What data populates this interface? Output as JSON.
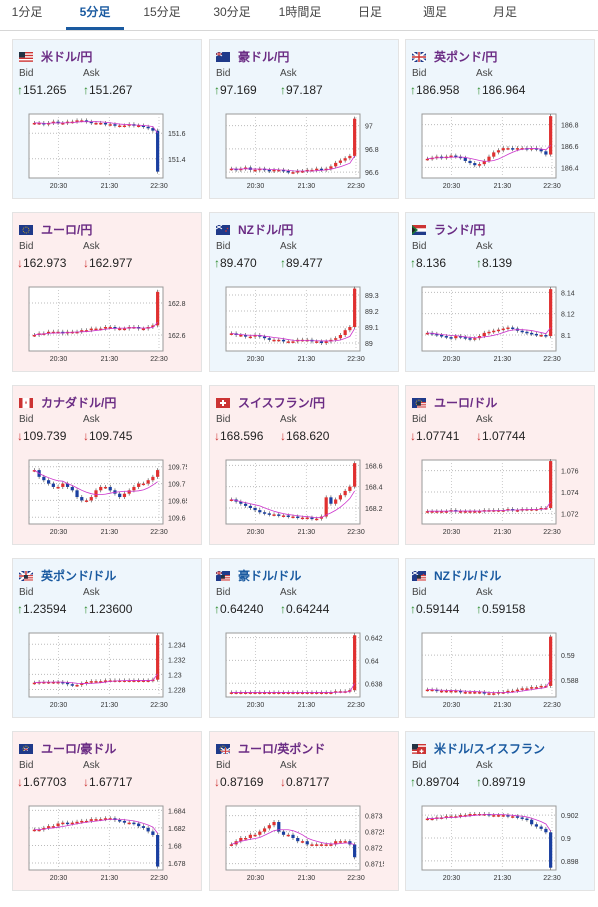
{
  "tabs": [
    {
      "label": "1分足",
      "active": false
    },
    {
      "label": "5分足",
      "active": true
    },
    {
      "label": "15分足",
      "active": false
    },
    {
      "label": "30分足",
      "active": false
    },
    {
      "label": "1時間足",
      "active": false
    },
    {
      "label": "日足",
      "active": false
    },
    {
      "label": "週足",
      "active": false
    },
    {
      "label": "月足",
      "active": false
    }
  ],
  "labels": {
    "bid": "Bid",
    "ask": "Ask"
  },
  "arrows": {
    "up": "↑",
    "down": "↓"
  },
  "x_ticks": [
    "20:30",
    "21:30",
    "22:30"
  ],
  "colors": {
    "up_bg": "#eef6fc",
    "down_bg": "#fdeeee",
    "up_arrow": "#2a8a2a",
    "down_arrow": "#c33333",
    "candle_up": "#e03030",
    "candle_down": "#1a3fa0",
    "ma_line": "#cc33cc"
  },
  "cards": [
    {
      "name": "米ドル/円",
      "flag": "us",
      "dir": "up",
      "bid": "151.265",
      "ask": "151.267",
      "chart_data": {
        "type": "candlestick",
        "yticks": [
          "151.6",
          "151.4"
        ],
        "ylim": [
          151.25,
          151.75
        ],
        "series": [
          151.68,
          151.68,
          151.67,
          151.68,
          151.69,
          151.68,
          151.68,
          151.69,
          151.69,
          151.7,
          151.7,
          151.69,
          151.68,
          151.68,
          151.68,
          151.67,
          151.67,
          151.66,
          151.66,
          151.66,
          151.67,
          151.66,
          151.66,
          151.65,
          151.64,
          151.62,
          151.3
        ],
        "spike": "down"
      }
    },
    {
      "name": "豪ドル/円",
      "flag": "au",
      "dir": "up",
      "bid": "97.169",
      "ask": "97.187",
      "chart_data": {
        "type": "candlestick",
        "yticks": [
          "97",
          "96.8",
          "96.6"
        ],
        "ylim": [
          96.55,
          97.1
        ],
        "series": [
          96.63,
          96.62,
          96.63,
          96.64,
          96.62,
          96.62,
          96.63,
          96.62,
          96.61,
          96.62,
          96.62,
          96.61,
          96.6,
          96.6,
          96.61,
          96.61,
          96.62,
          96.62,
          96.63,
          96.62,
          96.63,
          96.65,
          96.68,
          96.7,
          96.72,
          96.74,
          97.06
        ],
        "spike": "up"
      }
    },
    {
      "name": "英ポンド/円",
      "flag": "uk",
      "dir": "up",
      "bid": "186.958",
      "ask": "186.964",
      "chart_data": {
        "type": "candlestick",
        "yticks": [
          "186.8",
          "186.6",
          "186.4"
        ],
        "ylim": [
          186.3,
          186.9
        ],
        "series": [
          186.48,
          186.49,
          186.5,
          186.49,
          186.5,
          186.51,
          186.5,
          186.49,
          186.46,
          186.44,
          186.42,
          186.43,
          186.46,
          186.5,
          186.54,
          186.56,
          186.58,
          186.58,
          186.57,
          186.58,
          186.58,
          186.57,
          186.58,
          186.57,
          186.55,
          186.52,
          186.88
        ],
        "spike": "up"
      }
    },
    {
      "name": "ユーロ/円",
      "flag": "eu",
      "dir": "down",
      "bid": "162.973",
      "ask": "162.977",
      "chart_data": {
        "type": "candlestick",
        "yticks": [
          "162.8",
          "162.6"
        ],
        "ylim": [
          162.5,
          162.9
        ],
        "series": [
          162.6,
          162.61,
          162.61,
          162.62,
          162.62,
          162.62,
          162.61,
          162.62,
          162.62,
          162.62,
          162.63,
          162.63,
          162.64,
          162.64,
          162.64,
          162.65,
          162.65,
          162.64,
          162.64,
          162.64,
          162.65,
          162.65,
          162.64,
          162.64,
          162.65,
          162.66,
          162.87
        ],
        "spike": "up"
      }
    },
    {
      "name": "NZドル/円",
      "flag": "nz",
      "dir": "up",
      "bid": "89.470",
      "ask": "89.477",
      "chart_data": {
        "type": "candlestick",
        "yticks": [
          "89.3",
          "89.2",
          "89.1",
          "89"
        ],
        "ylim": [
          88.95,
          89.35
        ],
        "series": [
          89.06,
          89.05,
          89.05,
          89.04,
          89.04,
          89.05,
          89.04,
          89.03,
          89.02,
          89.02,
          89.02,
          89.01,
          89.01,
          89.01,
          89.02,
          89.02,
          89.02,
          89.01,
          89.01,
          89.0,
          89.01,
          89.02,
          89.03,
          89.05,
          89.08,
          89.1,
          89.34
        ],
        "spike": "up"
      }
    },
    {
      "name": "ランド/円",
      "flag": "za",
      "dir": "up",
      "bid": "8.136",
      "ask": "8.139",
      "chart_data": {
        "type": "candlestick",
        "yticks": [
          "8.14",
          "8.12",
          "8.1"
        ],
        "ylim": [
          8.085,
          8.145
        ],
        "series": [
          8.102,
          8.101,
          8.1,
          8.099,
          8.098,
          8.097,
          8.099,
          8.098,
          8.097,
          8.096,
          8.097,
          8.099,
          8.102,
          8.103,
          8.104,
          8.105,
          8.106,
          8.107,
          8.106,
          8.104,
          8.103,
          8.102,
          8.101,
          8.1,
          8.1,
          8.099,
          8.143
        ],
        "spike": "up"
      }
    },
    {
      "name": "カナダドル/円",
      "flag": "ca",
      "dir": "down",
      "bid": "109.739",
      "ask": "109.745",
      "chart_data": {
        "type": "candlestick",
        "yticks": [
          "109.75",
          "109.7",
          "109.65",
          "109.6"
        ],
        "ylim": [
          109.58,
          109.77
        ],
        "series": [
          109.74,
          109.72,
          109.71,
          109.7,
          109.69,
          109.69,
          109.7,
          109.69,
          109.68,
          109.66,
          109.65,
          109.65,
          109.66,
          109.68,
          109.69,
          109.69,
          109.68,
          109.67,
          109.66,
          109.67,
          109.68,
          109.69,
          109.7,
          109.7,
          109.71,
          109.72,
          109.74
        ],
        "spike": "up"
      }
    },
    {
      "name": "スイスフラン/円",
      "flag": "ch",
      "dir": "down",
      "bid": "168.596",
      "ask": "168.620",
      "chart_data": {
        "type": "candlestick",
        "yticks": [
          "168.6",
          "168.4",
          "168.2"
        ],
        "ylim": [
          168.05,
          168.65
        ],
        "series": [
          168.28,
          168.26,
          168.24,
          168.22,
          168.2,
          168.18,
          168.16,
          168.15,
          168.14,
          168.14,
          168.13,
          168.13,
          168.12,
          168.12,
          168.11,
          168.11,
          168.11,
          168.1,
          168.1,
          168.12,
          168.3,
          168.24,
          168.28,
          168.32,
          168.36,
          168.4,
          168.62
        ],
        "spike": "up"
      }
    },
    {
      "name": "ユーロ/ドル",
      "flag": "euus",
      "dir": "down",
      "bid": "1.07741",
      "ask": "1.07744",
      "chart_data": {
        "type": "candlestick",
        "yticks": [
          "1.076",
          "1.074",
          "1.072"
        ],
        "ylim": [
          1.071,
          1.077
        ],
        "series": [
          1.0722,
          1.0722,
          1.0722,
          1.0722,
          1.0722,
          1.0723,
          1.0722,
          1.0722,
          1.0722,
          1.0722,
          1.0722,
          1.0722,
          1.0723,
          1.0723,
          1.0723,
          1.0723,
          1.0723,
          1.0724,
          1.0723,
          1.0723,
          1.0724,
          1.0724,
          1.0724,
          1.0724,
          1.0725,
          1.0725,
          1.0769
        ],
        "spike": "up"
      }
    },
    {
      "name": "英ポンド/ドル",
      "flag": "ukus",
      "dir": "up",
      "bid": "1.23594",
      "ask": "1.23600",
      "chart_data": {
        "type": "candlestick",
        "yticks": [
          "1.234",
          "1.232",
          "1.23",
          "1.228"
        ],
        "ylim": [
          1.227,
          1.2355
        ],
        "series": [
          1.2289,
          1.229,
          1.229,
          1.229,
          1.229,
          1.229,
          1.2289,
          1.2287,
          1.2286,
          1.2286,
          1.2288,
          1.229,
          1.2291,
          1.2291,
          1.2291,
          1.2292,
          1.2292,
          1.2292,
          1.2292,
          1.2292,
          1.2292,
          1.2292,
          1.2292,
          1.2292,
          1.2292,
          1.2293,
          1.2352
        ],
        "spike": "up"
      }
    },
    {
      "name": "豪ドル/ドル",
      "flag": "auus",
      "dir": "up",
      "bid": "0.64240",
      "ask": "0.64244",
      "chart_data": {
        "type": "candlestick",
        "yticks": [
          "0.642",
          "0.64",
          "0.638"
        ],
        "ylim": [
          0.6368,
          0.6424
        ],
        "series": [
          0.6372,
          0.6372,
          0.6372,
          0.6372,
          0.6372,
          0.6372,
          0.6372,
          0.6372,
          0.6372,
          0.6372,
          0.6372,
          0.6372,
          0.6372,
          0.6372,
          0.6372,
          0.6372,
          0.6372,
          0.6372,
          0.6372,
          0.6372,
          0.6372,
          0.6372,
          0.6373,
          0.6373,
          0.6373,
          0.6374,
          0.6422
        ],
        "spike": "up"
      }
    },
    {
      "name": "NZドル/ドル",
      "flag": "nzus",
      "dir": "up",
      "bid": "0.59144",
      "ask": "0.59158",
      "chart_data": {
        "type": "candlestick",
        "yticks": [
          "0.59",
          "0.588"
        ],
        "ylim": [
          0.5866,
          0.5918
        ],
        "series": [
          0.5872,
          0.5872,
          0.5871,
          0.5871,
          0.5871,
          0.5871,
          0.5871,
          0.587,
          0.587,
          0.587,
          0.587,
          0.587,
          0.5869,
          0.5869,
          0.5869,
          0.587,
          0.587,
          0.5871,
          0.5871,
          0.5872,
          0.5873,
          0.5873,
          0.5874,
          0.5874,
          0.5875,
          0.5875,
          0.5915
        ],
        "spike": "up"
      }
    },
    {
      "name": "ユーロ/豪ドル",
      "flag": "euau",
      "dir": "down",
      "bid": "1.67703",
      "ask": "1.67717",
      "chart_data": {
        "type": "candlestick",
        "yticks": [
          "1.684",
          "1.682",
          "1.68",
          "1.678"
        ],
        "ylim": [
          1.6772,
          1.6845
        ],
        "series": [
          1.6818,
          1.6818,
          1.682,
          1.6822,
          1.6822,
          1.6825,
          1.6826,
          1.6825,
          1.6826,
          1.6827,
          1.6828,
          1.6828,
          1.683,
          1.683,
          1.683,
          1.6831,
          1.6831,
          1.6829,
          1.6828,
          1.6826,
          1.6826,
          1.6825,
          1.6822,
          1.682,
          1.6816,
          1.6812,
          1.6776
        ],
        "spike": "down"
      }
    },
    {
      "name": "ユーロ/英ポンド",
      "flag": "euuk",
      "dir": "down",
      "bid": "0.87169",
      "ask": "0.87177",
      "chart_data": {
        "type": "candlestick",
        "yticks": [
          "0.873",
          "0.8725",
          "0.872",
          "0.8715"
        ],
        "ylim": [
          0.8713,
          0.8733
        ],
        "series": [
          0.8721,
          0.8722,
          0.8723,
          0.8723,
          0.8724,
          0.8724,
          0.8725,
          0.8726,
          0.8727,
          0.8728,
          0.8725,
          0.8724,
          0.8724,
          0.8723,
          0.8722,
          0.8722,
          0.8721,
          0.8721,
          0.8721,
          0.8721,
          0.8721,
          0.8721,
          0.8722,
          0.8722,
          0.8722,
          0.8721,
          0.8717
        ],
        "spike": "down"
      }
    },
    {
      "name": "米ドル/スイスフラン",
      "flag": "usch",
      "dir": "up",
      "bid": "0.89704",
      "ask": "0.89719",
      "chart_data": {
        "type": "candlestick",
        "yticks": [
          "0.902",
          "0.9",
          "0.898"
        ],
        "ylim": [
          0.8972,
          0.9028
        ],
        "series": [
          0.9017,
          0.9017,
          0.9018,
          0.9018,
          0.9019,
          0.9019,
          0.9019,
          0.902,
          0.902,
          0.9021,
          0.9021,
          0.9021,
          0.9021,
          0.902,
          0.902,
          0.902,
          0.902,
          0.9019,
          0.9019,
          0.9018,
          0.9017,
          0.9016,
          0.9012,
          0.901,
          0.9008,
          0.9005,
          0.8974
        ],
        "spike": "down"
      }
    }
  ]
}
